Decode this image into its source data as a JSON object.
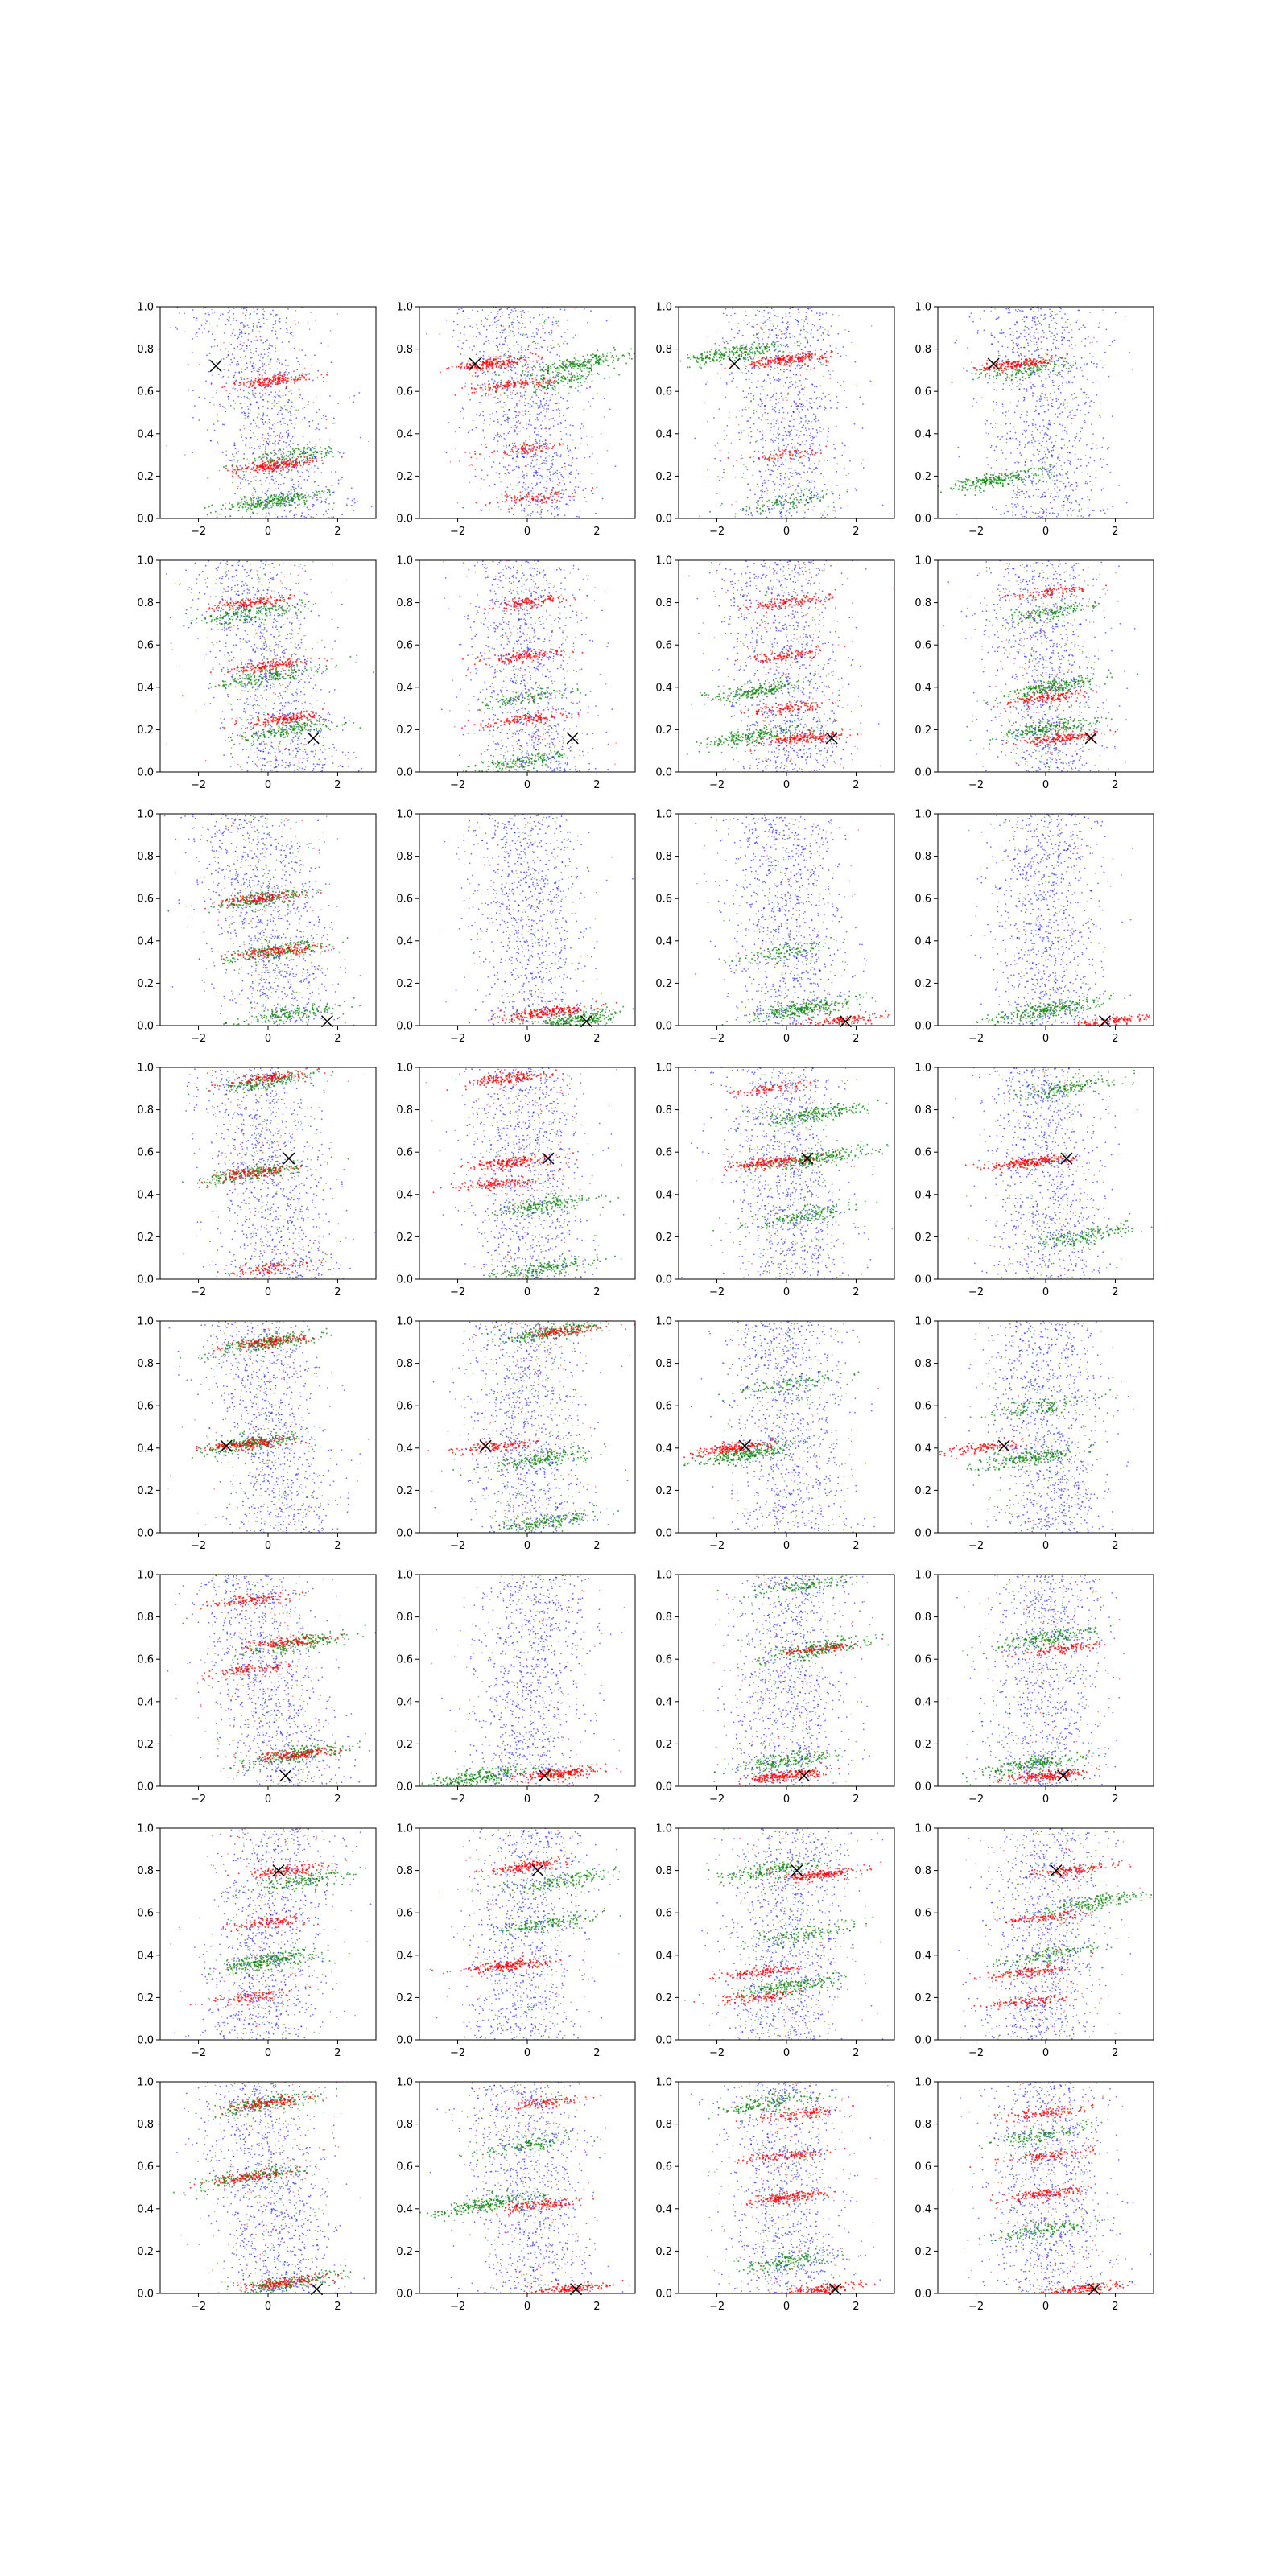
{
  "figure": {
    "rows": 8,
    "cols": 4,
    "xlim": [
      -3.1,
      3.1
    ],
    "ylim": [
      0.0,
      1.0
    ],
    "x_ticks": [
      "−2",
      "0",
      "2"
    ],
    "x_tick_values": [
      -2,
      0,
      2
    ],
    "y_ticks": [
      "0.0",
      "0.2",
      "0.4",
      "0.6",
      "0.8",
      "1.0"
    ],
    "y_tick_values": [
      0.0,
      0.2,
      0.4,
      0.6,
      0.8,
      1.0
    ],
    "colors": {
      "blue": "#0000ff",
      "red": "#ff0000",
      "green": "#008000",
      "marker": "#000000"
    }
  },
  "chart_data": [
    {
      "type": "scatter",
      "row": 1,
      "col": 1,
      "marker": [
        -1.5,
        0.72
      ],
      "blue": {
        "slope": -0.9,
        "center": 0.55
      },
      "red": [
        [
          0.2,
          0.25,
          1.0
        ],
        [
          0.1,
          0.65,
          0.8
        ]
      ],
      "green": [
        [
          0.1,
          0.08,
          1.0
        ],
        [
          0.8,
          0.3,
          0.5
        ]
      ]
    },
    {
      "type": "scatter",
      "row": 1,
      "col": 2,
      "marker": [
        -1.5,
        0.73
      ],
      "blue": {
        "slope": -0.5,
        "center": 0.45
      },
      "red": [
        [
          -1.0,
          0.73,
          0.9
        ],
        [
          -0.5,
          0.63,
          0.6
        ],
        [
          0.0,
          0.33,
          0.4
        ],
        [
          0.2,
          0.1,
          0.4
        ]
      ],
      "green": [
        [
          1.5,
          0.73,
          0.9
        ],
        [
          1.0,
          0.65,
          0.4
        ]
      ]
    },
    {
      "type": "scatter",
      "row": 1,
      "col": 3,
      "marker": [
        -1.5,
        0.73
      ],
      "blue": {
        "slope": -0.2,
        "center": 0.5
      },
      "red": [
        [
          0.0,
          0.75,
          1.0
        ],
        [
          0.0,
          0.3,
          0.3
        ]
      ],
      "green": [
        [
          -1.5,
          0.78,
          0.9
        ],
        [
          0.0,
          0.08,
          0.4
        ]
      ]
    },
    {
      "type": "scatter",
      "row": 1,
      "col": 4,
      "marker": [
        -1.5,
        0.73
      ],
      "blue": {
        "slope": -0.2,
        "center": 0.5
      },
      "red": [
        [
          -0.8,
          0.73,
          0.9
        ]
      ],
      "green": [
        [
          -1.5,
          0.18,
          0.9
        ],
        [
          -0.5,
          0.7,
          0.5
        ]
      ]
    },
    {
      "type": "scatter",
      "row": 2,
      "col": 1,
      "marker": [
        1.3,
        0.16
      ],
      "blue": {
        "slope": -0.8,
        "center": 0.5
      },
      "red": [
        [
          -0.5,
          0.8,
          0.7
        ],
        [
          0.0,
          0.5,
          0.7
        ],
        [
          0.5,
          0.25,
          0.7
        ]
      ],
      "green": [
        [
          -0.5,
          0.75,
          0.7
        ],
        [
          0.0,
          0.45,
          0.7
        ],
        [
          0.6,
          0.2,
          0.7
        ]
      ]
    },
    {
      "type": "scatter",
      "row": 2,
      "col": 2,
      "marker": [
        1.3,
        0.16
      ],
      "blue": {
        "slope": -0.3,
        "center": 0.5
      },
      "red": [
        [
          0.0,
          0.8,
          0.6
        ],
        [
          0.0,
          0.55,
          0.6
        ],
        [
          0.0,
          0.25,
          0.6
        ]
      ],
      "green": [
        [
          -0.2,
          0.05,
          0.6
        ],
        [
          0.0,
          0.35,
          0.4
        ]
      ]
    },
    {
      "type": "scatter",
      "row": 2,
      "col": 3,
      "marker": [
        1.3,
        0.16
      ],
      "blue": {
        "slope": -0.3,
        "center": 0.5
      },
      "red": [
        [
          0.0,
          0.8,
          0.5
        ],
        [
          0.0,
          0.55,
          0.5
        ],
        [
          0.0,
          0.3,
          0.5
        ],
        [
          0.5,
          0.16,
          0.8
        ]
      ],
      "green": [
        [
          -1.0,
          0.38,
          0.8
        ],
        [
          -1.0,
          0.17,
          0.8
        ]
      ]
    },
    {
      "type": "scatter",
      "row": 2,
      "col": 4,
      "marker": [
        1.3,
        0.16
      ],
      "blue": {
        "slope": -0.2,
        "center": 0.5
      },
      "red": [
        [
          0.0,
          0.85,
          0.4
        ],
        [
          0.0,
          0.35,
          0.6
        ],
        [
          0.5,
          0.16,
          0.8
        ]
      ],
      "green": [
        [
          0.2,
          0.4,
          0.8
        ],
        [
          0.0,
          0.2,
          0.7
        ],
        [
          0.0,
          0.75,
          0.5
        ]
      ]
    },
    {
      "type": "scatter",
      "row": 3,
      "col": 1,
      "marker": [
        1.7,
        0.02
      ],
      "blue": {
        "slope": -0.8,
        "center": 0.5
      },
      "red": [
        [
          -0.2,
          0.6,
          0.7
        ],
        [
          0.2,
          0.35,
          0.7
        ]
      ],
      "green": [
        [
          -0.2,
          0.6,
          0.7
        ],
        [
          0.2,
          0.35,
          0.7
        ],
        [
          0.5,
          0.05,
          0.6
        ]
      ]
    },
    {
      "type": "scatter",
      "row": 3,
      "col": 2,
      "marker": [
        1.7,
        0.02
      ],
      "blue": {
        "slope": -0.2,
        "center": 0.5
      },
      "red": [
        [
          0.5,
          0.06,
          1.0
        ]
      ],
      "green": [
        [
          1.5,
          0.03,
          1.0
        ]
      ]
    },
    {
      "type": "scatter",
      "row": 3,
      "col": 3,
      "marker": [
        1.7,
        0.02
      ],
      "blue": {
        "slope": -0.2,
        "center": 0.55
      },
      "red": [
        [
          1.5,
          0.02,
          0.6
        ]
      ],
      "green": [
        [
          0.5,
          0.08,
          1.0
        ],
        [
          0.0,
          0.35,
          0.4
        ]
      ]
    },
    {
      "type": "scatter",
      "row": 3,
      "col": 4,
      "marker": [
        1.7,
        0.02
      ],
      "blue": {
        "slope": -0.1,
        "center": 0.45
      },
      "red": [
        [
          1.8,
          0.02,
          0.6
        ]
      ],
      "green": [
        [
          0.0,
          0.07,
          1.0
        ]
      ]
    },
    {
      "type": "scatter",
      "row": 4,
      "col": 1,
      "marker": [
        0.6,
        0.57
      ],
      "blue": {
        "slope": -0.5,
        "center": 0.5
      },
      "red": [
        [
          0.0,
          0.95,
          0.6
        ],
        [
          -0.5,
          0.5,
          0.6
        ],
        [
          0.0,
          0.05,
          0.5
        ]
      ],
      "green": [
        [
          -0.5,
          0.5,
          0.8
        ],
        [
          0.0,
          0.93,
          0.6
        ]
      ]
    },
    {
      "type": "scatter",
      "row": 4,
      "col": 2,
      "marker": [
        0.6,
        0.57
      ],
      "blue": {
        "slope": -0.3,
        "center": 0.5
      },
      "red": [
        [
          -0.5,
          0.95,
          0.8
        ],
        [
          -0.5,
          0.55,
          0.8
        ],
        [
          -0.8,
          0.45,
          0.6
        ]
      ],
      "green": [
        [
          0.5,
          0.35,
          0.7
        ],
        [
          0.5,
          0.05,
          0.7
        ]
      ]
    },
    {
      "type": "scatter",
      "row": 4,
      "col": 3,
      "marker": [
        0.6,
        0.57
      ],
      "blue": {
        "slope": -0.3,
        "center": 0.5
      },
      "red": [
        [
          -0.5,
          0.55,
          1.0
        ],
        [
          -0.5,
          0.9,
          0.4
        ]
      ],
      "green": [
        [
          0.8,
          0.78,
          0.8
        ],
        [
          1.0,
          0.57,
          0.8
        ],
        [
          0.5,
          0.3,
          0.6
        ]
      ]
    },
    {
      "type": "scatter",
      "row": 4,
      "col": 4,
      "marker": [
        0.6,
        0.57
      ],
      "blue": {
        "slope": -0.3,
        "center": 0.5
      },
      "red": [
        [
          -0.5,
          0.55,
          1.0
        ]
      ],
      "green": [
        [
          0.5,
          0.9,
          0.6
        ],
        [
          1.0,
          0.2,
          0.6
        ]
      ]
    },
    {
      "type": "scatter",
      "row": 5,
      "col": 1,
      "marker": [
        -1.2,
        0.41
      ],
      "blue": {
        "slope": -0.6,
        "center": 0.55
      },
      "red": [
        [
          0.0,
          0.9,
          0.7
        ],
        [
          -0.5,
          0.42,
          0.8
        ]
      ],
      "green": [
        [
          0.0,
          0.9,
          0.8
        ],
        [
          -0.5,
          0.42,
          0.8
        ]
      ]
    },
    {
      "type": "scatter",
      "row": 5,
      "col": 2,
      "marker": [
        -1.2,
        0.41
      ],
      "blue": {
        "slope": -0.3,
        "center": 0.5
      },
      "red": [
        [
          -0.8,
          0.41,
          0.6
        ],
        [
          1.0,
          0.95,
          0.6
        ]
      ],
      "green": [
        [
          0.7,
          0.95,
          0.8
        ],
        [
          0.5,
          0.35,
          0.7
        ],
        [
          0.5,
          0.05,
          0.7
        ]
      ]
    },
    {
      "type": "scatter",
      "row": 5,
      "col": 3,
      "marker": [
        -1.2,
        0.41
      ],
      "blue": {
        "slope": -0.2,
        "center": 0.55
      },
      "red": [
        [
          -1.5,
          0.4,
          0.9
        ]
      ],
      "green": [
        [
          -1.2,
          0.37,
          1.0
        ],
        [
          0.0,
          0.7,
          0.4
        ]
      ]
    },
    {
      "type": "scatter",
      "row": 5,
      "col": 4,
      "marker": [
        -1.2,
        0.41
      ],
      "blue": {
        "slope": -0.2,
        "center": 0.55
      },
      "red": [
        [
          -1.8,
          0.4,
          0.6
        ]
      ],
      "green": [
        [
          -0.5,
          0.35,
          0.8
        ],
        [
          0.0,
          0.6,
          0.5
        ]
      ]
    },
    {
      "type": "scatter",
      "row": 6,
      "col": 1,
      "marker": [
        0.5,
        0.05
      ],
      "blue": {
        "slope": -0.7,
        "center": 0.5
      },
      "red": [
        [
          -0.5,
          0.88,
          0.6
        ],
        [
          0.5,
          0.68,
          0.6
        ],
        [
          -0.5,
          0.55,
          0.5
        ],
        [
          0.8,
          0.15,
          0.7
        ]
      ],
      "green": [
        [
          1.0,
          0.68,
          0.6
        ],
        [
          0.8,
          0.15,
          0.8
        ]
      ]
    },
    {
      "type": "scatter",
      "row": 6,
      "col": 2,
      "marker": [
        0.5,
        0.05
      ],
      "blue": {
        "slope": 0.3,
        "center": 0.5
      },
      "red": [
        [
          1.0,
          0.06,
          1.0
        ]
      ],
      "green": [
        [
          -1.5,
          0.04,
          1.0
        ]
      ]
    },
    {
      "type": "scatter",
      "row": 6,
      "col": 3,
      "marker": [
        0.5,
        0.05
      ],
      "blue": {
        "slope": 0.2,
        "center": 0.5
      },
      "red": [
        [
          0.0,
          0.05,
          1.0
        ],
        [
          1.0,
          0.65,
          0.5
        ]
      ],
      "green": [
        [
          1.0,
          0.65,
          0.7
        ],
        [
          0.0,
          0.12,
          0.7
        ],
        [
          0.5,
          0.95,
          0.5
        ]
      ]
    },
    {
      "type": "scatter",
      "row": 6,
      "col": 4,
      "marker": [
        0.5,
        0.05
      ],
      "blue": {
        "slope": 0.1,
        "center": 0.5
      },
      "red": [
        [
          0.0,
          0.05,
          1.0
        ],
        [
          0.5,
          0.65,
          0.5
        ]
      ],
      "green": [
        [
          -0.5,
          0.1,
          0.7
        ],
        [
          0.0,
          0.7,
          0.7
        ]
      ]
    },
    {
      "type": "scatter",
      "row": 7,
      "col": 1,
      "marker": [
        0.3,
        0.8
      ],
      "blue": {
        "slope": 0.3,
        "center": 0.5
      },
      "red": [
        [
          0.5,
          0.8,
          0.6
        ],
        [
          -0.5,
          0.2,
          0.5
        ],
        [
          0.0,
          0.55,
          0.5
        ]
      ],
      "green": [
        [
          0.0,
          0.37,
          1.0
        ],
        [
          1.0,
          0.75,
          0.6
        ]
      ]
    },
    {
      "type": "scatter",
      "row": 7,
      "col": 2,
      "marker": [
        0.3,
        0.8
      ],
      "blue": {
        "slope": 0.3,
        "center": 0.55
      },
      "red": [
        [
          -0.5,
          0.35,
          0.9
        ],
        [
          0.0,
          0.82,
          0.8
        ]
      ],
      "green": [
        [
          0.5,
          0.55,
          0.6
        ],
        [
          1.0,
          0.75,
          0.6
        ]
      ]
    },
    {
      "type": "scatter",
      "row": 7,
      "col": 3,
      "marker": [
        0.3,
        0.8
      ],
      "blue": {
        "slope": 0.2,
        "center": 0.5
      },
      "red": [
        [
          1.0,
          0.78,
          0.8
        ],
        [
          -0.8,
          0.32,
          0.6
        ],
        [
          -0.8,
          0.2,
          0.5
        ]
      ],
      "green": [
        [
          -0.5,
          0.8,
          0.6
        ],
        [
          0.0,
          0.25,
          0.8
        ],
        [
          0.5,
          0.5,
          0.5
        ]
      ]
    },
    {
      "type": "scatter",
      "row": 7,
      "col": 4,
      "marker": [
        0.3,
        0.8
      ],
      "blue": {
        "slope": 0.2,
        "center": 0.5
      },
      "red": [
        [
          0.8,
          0.8,
          0.6
        ],
        [
          -0.5,
          0.32,
          0.6
        ],
        [
          -0.5,
          0.18,
          0.5
        ],
        [
          0.0,
          0.58,
          0.5
        ]
      ],
      "green": [
        [
          1.5,
          0.65,
          0.7
        ],
        [
          0.0,
          0.4,
          0.5
        ]
      ]
    },
    {
      "type": "scatter",
      "row": 8,
      "col": 1,
      "marker": [
        1.4,
        0.02
      ],
      "blue": {
        "slope": -0.6,
        "center": 0.5
      },
      "red": [
        [
          0.0,
          0.9,
          0.6
        ],
        [
          -0.5,
          0.55,
          0.6
        ],
        [
          0.5,
          0.05,
          0.7
        ]
      ],
      "green": [
        [
          0.0,
          0.9,
          0.6
        ],
        [
          -0.5,
          0.55,
          0.6
        ],
        [
          0.5,
          0.05,
          0.7
        ]
      ]
    },
    {
      "type": "scatter",
      "row": 8,
      "col": 2,
      "marker": [
        1.4,
        0.02
      ],
      "blue": {
        "slope": -0.3,
        "center": 0.55
      },
      "red": [
        [
          0.5,
          0.9,
          0.5
        ],
        [
          0.5,
          0.42,
          0.6
        ],
        [
          1.2,
          0.02,
          0.7
        ]
      ],
      "green": [
        [
          -1.2,
          0.42,
          0.9
        ],
        [
          0.0,
          0.7,
          0.5
        ]
      ]
    },
    {
      "type": "scatter",
      "row": 8,
      "col": 3,
      "marker": [
        1.4,
        0.02
      ],
      "blue": {
        "slope": -0.2,
        "center": 0.5
      },
      "red": [
        [
          0.0,
          0.45,
          0.8
        ],
        [
          0.0,
          0.65,
          0.5
        ],
        [
          1.0,
          0.02,
          0.7
        ],
        [
          0.5,
          0.85,
          0.5
        ]
      ],
      "green": [
        [
          -0.5,
          0.9,
          0.6
        ],
        [
          0.0,
          0.15,
          0.6
        ]
      ]
    },
    {
      "type": "scatter",
      "row": 8,
      "col": 4,
      "marker": [
        1.4,
        0.02
      ],
      "blue": {
        "slope": -0.2,
        "center": 0.5
      },
      "red": [
        [
          0.0,
          0.85,
          0.5
        ],
        [
          0.0,
          0.65,
          0.5
        ],
        [
          0.0,
          0.47,
          0.7
        ],
        [
          1.0,
          0.02,
          0.7
        ]
      ],
      "green": [
        [
          0.0,
          0.3,
          0.5
        ],
        [
          0.0,
          0.75,
          0.5
        ]
      ]
    }
  ]
}
